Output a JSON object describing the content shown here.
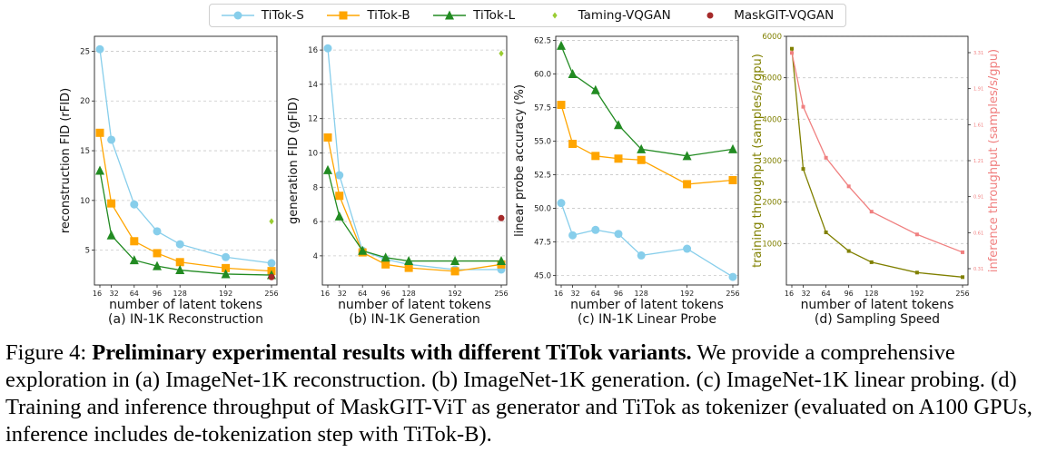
{
  "legend": [
    {
      "name": "TiTok-S",
      "color": "#87CEEB",
      "marker": "circle"
    },
    {
      "name": "TiTok-B",
      "color": "#FFA500",
      "marker": "square"
    },
    {
      "name": "TiTok-L",
      "color": "#228B22",
      "marker": "triangle"
    },
    {
      "name": "Taming-VQGAN",
      "color": "#9ACD32",
      "marker": "diamond"
    },
    {
      "name": "MaskGIT-VQGAN",
      "color": "#A52A2A",
      "marker": "circle"
    }
  ],
  "chart_data": [
    {
      "type": "line",
      "title": "(a) IN-1K Reconstruction",
      "xlabel": "number of latent tokens",
      "ylabel": "reconstruction FID (rFID)",
      "x": [
        16,
        32,
        64,
        96,
        128,
        192,
        256
      ],
      "xticks": [
        "16",
        "32",
        "64",
        "96",
        "128",
        "192",
        "256"
      ],
      "ylim": [
        1.5,
        26.5
      ],
      "yticks": [
        5,
        10,
        15,
        20,
        25
      ],
      "series": [
        {
          "name": "TiTok-S",
          "values": [
            25.2,
            16.1,
            9.6,
            6.9,
            5.6,
            4.3,
            3.7
          ]
        },
        {
          "name": "TiTok-B",
          "values": [
            16.8,
            9.7,
            5.9,
            4.7,
            3.8,
            3.2,
            2.9
          ]
        },
        {
          "name": "TiTok-L",
          "values": [
            13.0,
            6.5,
            4.0,
            3.4,
            3.0,
            2.6,
            2.5
          ]
        }
      ],
      "points": [
        {
          "name": "Taming-VQGAN",
          "x": 256,
          "y": 7.9
        },
        {
          "name": "MaskGIT-VQGAN",
          "x": 256,
          "y": 2.3
        }
      ]
    },
    {
      "type": "line",
      "title": "(b) IN-1K Generation",
      "xlabel": "number of latent tokens",
      "ylabel": "generation FID (gFID)",
      "x": [
        16,
        32,
        64,
        96,
        128,
        192,
        256
      ],
      "xticks": [
        "16",
        "32",
        "64",
        "96",
        "128",
        "192",
        "256"
      ],
      "ylim": [
        2.3,
        16.8
      ],
      "yticks": [
        4,
        6,
        8,
        10,
        12,
        14,
        16
      ],
      "series": [
        {
          "name": "TiTok-S",
          "values": [
            16.1,
            8.7,
            4.3,
            3.8,
            3.5,
            3.2,
            3.2
          ]
        },
        {
          "name": "TiTok-B",
          "values": [
            10.9,
            7.5,
            4.2,
            3.5,
            3.3,
            3.1,
            3.5
          ]
        },
        {
          "name": "TiTok-L",
          "values": [
            9.0,
            6.3,
            4.3,
            3.9,
            3.7,
            3.7,
            3.7
          ]
        }
      ],
      "points": [
        {
          "name": "Taming-VQGAN",
          "x": 256,
          "y": 15.8
        },
        {
          "name": "MaskGIT-VQGAN",
          "x": 256,
          "y": 6.2
        }
      ]
    },
    {
      "type": "line",
      "title": "(c) IN-1K Linear Probe",
      "xlabel": "number of latent tokens",
      "ylabel": "linear probe accuracy (%)",
      "x": [
        16,
        32,
        64,
        96,
        128,
        192,
        256
      ],
      "xticks": [
        "16",
        "32",
        "64",
        "96",
        "128",
        "192",
        "256"
      ],
      "ylim": [
        44.3,
        62.8
      ],
      "yticks": [
        "45.0",
        "47.5",
        "50.0",
        "52.5",
        "55.0",
        "57.5",
        "60.0",
        "62.5"
      ],
      "series": [
        {
          "name": "TiTok-S",
          "values": [
            50.4,
            48.0,
            48.4,
            48.1,
            46.5,
            47.0,
            44.9
          ]
        },
        {
          "name": "TiTok-B",
          "values": [
            57.7,
            54.8,
            53.9,
            53.7,
            53.6,
            51.8,
            52.1
          ]
        },
        {
          "name": "TiTok-L",
          "values": [
            62.1,
            60.0,
            58.8,
            56.2,
            54.4,
            53.9,
            54.4
          ]
        }
      ]
    },
    {
      "type": "line",
      "title": "(d) Sampling Speed",
      "xlabel": "number of latent tokens",
      "ylabel": "training throughput (samples/s/gpu)",
      "ylabel2": "inference throughput (samples/s/gpu)",
      "x": [
        16,
        32,
        64,
        96,
        128,
        192,
        256
      ],
      "xticks": [
        "16",
        "32",
        "64",
        "96",
        "128",
        "192",
        "256"
      ],
      "ylim": [
        0,
        6000
      ],
      "yticks": [
        1000,
        2000,
        3000,
        4000,
        5000,
        6000
      ],
      "series": [
        {
          "name": "training throughput",
          "color": "#808000",
          "values": [
            5700,
            2800,
            1270,
            820,
            550,
            300,
            190
          ]
        },
        {
          "name": "inference throughput",
          "color": "#F08080",
          "values": [
            5600,
            4300,
            3070,
            2380,
            1770,
            1220,
            790
          ]
        }
      ],
      "secondary_ticks": [
        "3.31",
        "1.91",
        "1.61",
        "1.21",
        "0.91",
        "0.61",
        "0.31"
      ]
    }
  ],
  "caption": {
    "prefix": "Figure 4: ",
    "bold": "Preliminary experimental results with different TiTok variants.",
    "rest": " We provide a comprehensive exploration in (a) ImageNet-1K reconstruction. (b) ImageNet-1K generation. (c) ImageNet-1K linear probing. (d) Training and inference throughput of MaskGIT-ViT as generator and TiTok as tokenizer (evaluated on A100 GPUs, inference includes de-tokenization step with TiTok-B)."
  }
}
